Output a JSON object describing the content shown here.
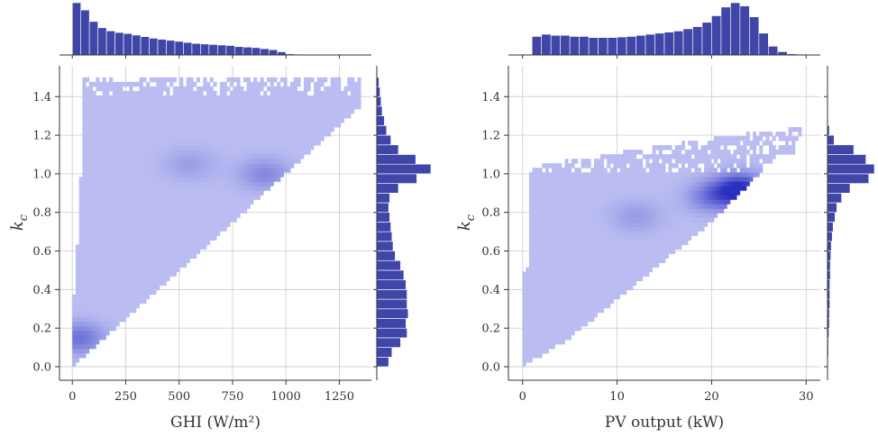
{
  "colors": {
    "hist_bar": "#4046a8",
    "hist_edge": "#ffffff",
    "density_light": "#c4c6f5",
    "density_dark": "#2a2fbf",
    "grid": "#d0d0d0",
    "axis": "#333333"
  },
  "chart_data": [
    {
      "type": "heatmap",
      "subtype": "joint-plot with marginal histograms",
      "xlabel": "GHI (W/m²)",
      "ylabel": "kc",
      "ylabel_main": "k",
      "ylabel_sub": "c",
      "xlim": [
        -60,
        1400
      ],
      "ylim": [
        -0.07,
        1.56
      ],
      "xticks": [
        0,
        250,
        500,
        750,
        1000,
        1250
      ],
      "xtick_labels": [
        "0",
        "250",
        "500",
        "750",
        "1000",
        "1250"
      ],
      "yticks": [
        0.0,
        0.2,
        0.4,
        0.6,
        0.8,
        1.0,
        1.2,
        1.4
      ],
      "ytick_labels": [
        "0.0",
        "0.2",
        "0.4",
        "0.6",
        "0.8",
        "1.0",
        "1.2",
        "1.4"
      ],
      "grid": true,
      "density_region": {
        "x_min": 0,
        "x_max": 1350,
        "y_max": 1.5,
        "upper_boundary": [
          [
            0,
            0.25
          ],
          [
            20,
            0.55
          ],
          [
            40,
            1.0
          ],
          [
            55,
            1.5
          ],
          [
            1350,
            1.5
          ]
        ],
        "lower_boundary": [
          [
            0,
            0.0
          ],
          [
            100,
            0.1
          ],
          [
            300,
            0.3
          ],
          [
            600,
            0.6
          ],
          [
            900,
            0.9
          ],
          [
            1350,
            1.35
          ]
        ],
        "sparse_band_y": [
          1.4,
          1.5
        ],
        "hotspots": [
          {
            "x": 900,
            "y": 1.0,
            "level": 0.35
          },
          {
            "x": 30,
            "y": 0.15,
            "level": 0.5
          },
          {
            "x": 550,
            "y": 1.05,
            "level": 0.2
          }
        ]
      },
      "marginal_x": {
        "bin_start": 0,
        "bin_width": 40,
        "counts": [
          100,
          86,
          64,
          52,
          46,
          43,
          41,
          38,
          35,
          32,
          30,
          28,
          26,
          24,
          22,
          21,
          20,
          19,
          18,
          16,
          15,
          14,
          12,
          10,
          6,
          2,
          1,
          0.5,
          0.3
        ]
      },
      "marginal_y": {
        "bin_start": 0.0,
        "bin_width": 0.05,
        "counts": [
          22,
          28,
          44,
          56,
          54,
          58,
          56,
          56,
          54,
          50,
          44,
          34,
          30,
          28,
          26,
          24,
          22,
          24,
          40,
          74,
          100,
          72,
          40,
          26,
          18,
          14,
          10,
          8,
          6,
          4
        ]
      }
    },
    {
      "type": "heatmap",
      "subtype": "joint-plot with marginal histograms",
      "xlabel": "PV output (kW)",
      "ylabel": "kc",
      "ylabel_main": "k",
      "ylabel_sub": "c",
      "xlim": [
        -1.5,
        31.5
      ],
      "ylim": [
        -0.07,
        1.56
      ],
      "xticks": [
        0,
        10,
        20,
        30
      ],
      "xtick_labels": [
        "0",
        "10",
        "20",
        "30"
      ],
      "yticks": [
        0.0,
        0.2,
        0.4,
        0.6,
        0.8,
        1.0,
        1.2,
        1.4
      ],
      "ytick_labels": [
        "0.0",
        "0.2",
        "0.4",
        "0.6",
        "0.8",
        "1.0",
        "1.2",
        "1.4"
      ],
      "grid": true,
      "density_region": {
        "x_min": 0,
        "x_max": 29.5,
        "y_max": 1.5,
        "upper_boundary": [
          [
            0,
            0.5
          ],
          [
            0.5,
            0.5
          ],
          [
            0.8,
            1.0
          ],
          [
            1.5,
            1.05
          ],
          [
            29.5,
            1.25
          ]
        ],
        "lower_boundary": [
          [
            0,
            0.0
          ],
          [
            5,
            0.15
          ],
          [
            10,
            0.35
          ],
          [
            15,
            0.55
          ],
          [
            20,
            0.75
          ],
          [
            25,
            1.0
          ],
          [
            27,
            1.1
          ]
        ],
        "sparse_band_y": [
          1.0,
          1.5
        ],
        "hotspots": [
          {
            "x": 23,
            "y": 0.92,
            "level": 1.0
          },
          {
            "x": 20,
            "y": 0.88,
            "level": 0.45
          },
          {
            "x": 12,
            "y": 0.78,
            "level": 0.22
          }
        ]
      },
      "marginal_x": {
        "bin_start": 0,
        "bin_width": 1,
        "counts": [
          0,
          34,
          38,
          36,
          36,
          34,
          34,
          32,
          32,
          32,
          33,
          34,
          36,
          38,
          40,
          42,
          44,
          48,
          52,
          60,
          72,
          88,
          96,
          90,
          70,
          40,
          16,
          6,
          2,
          1
        ]
      },
      "marginal_y": {
        "bin_start": 0.0,
        "bin_width": 0.05,
        "counts": [
          1,
          2,
          2,
          3,
          4,
          4,
          5,
          5,
          5,
          6,
          6,
          7,
          8,
          10,
          12,
          16,
          20,
          30,
          48,
          88,
          100,
          82,
          56,
          14,
          4,
          0,
          0,
          0,
          0,
          0
        ]
      }
    }
  ]
}
